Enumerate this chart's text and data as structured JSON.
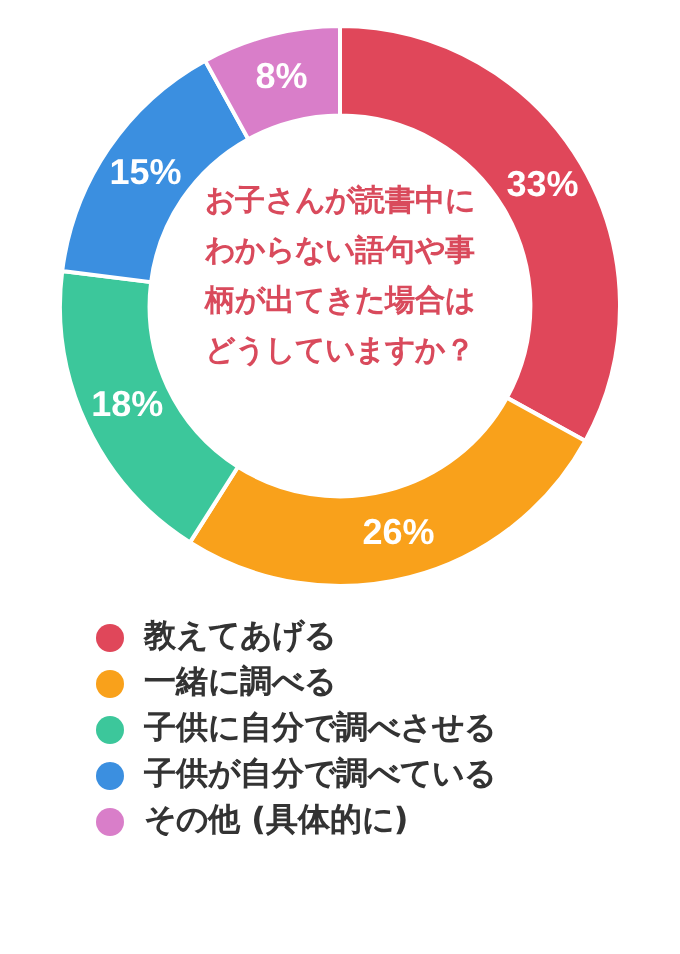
{
  "chart_data": {
    "type": "donut",
    "title": "お子さんが読書中にわからない語句や事柄が出てきた場合はどうしていますか？",
    "categories": [
      "教えてあげる",
      "一緒に調べる",
      "子供に自分で調べさせる",
      "子供が自分で調べている",
      "その他 (具体的に)"
    ],
    "values": [
      33,
      26,
      18,
      15,
      8
    ],
    "value_labels": [
      "33%",
      "26%",
      "18%",
      "15%",
      "8%"
    ],
    "colors": [
      "#e0475a",
      "#f9a11b",
      "#3cc79b",
      "#3b8fe0",
      "#d97ec9"
    ],
    "legend": "bottom"
  }
}
